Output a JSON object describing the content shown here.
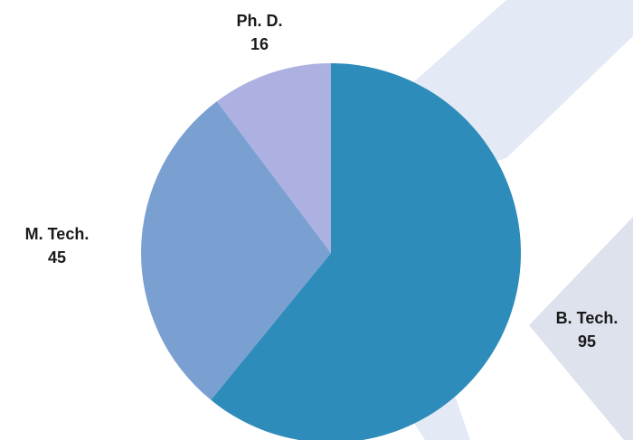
{
  "chart_data": {
    "type": "pie",
    "slices": [
      {
        "label": "B. Tech.",
        "value": 95,
        "color": "#2e8cba"
      },
      {
        "label": "M. Tech.",
        "value": 45,
        "color": "#7aa0d2"
      },
      {
        "label": "Ph. D.",
        "value": 16,
        "color": "#adb1e2"
      }
    ],
    "start_angle_deg": 0,
    "direction": "clockwise",
    "legend": "none",
    "labels": "outside"
  },
  "background": {
    "band_colors": [
      "#e3eaf5",
      "#dde2ed"
    ]
  }
}
